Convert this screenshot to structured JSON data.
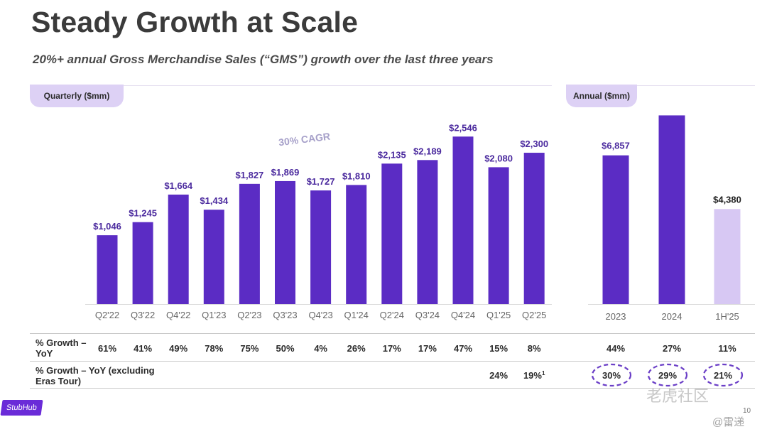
{
  "title": "Steady Growth at Scale",
  "subtitle": "20%+ annual Gross Merchandise Sales (“GMS”) growth over the last three years",
  "cagr_annotation": "30% CAGR",
  "logo": "StubHub",
  "page_number": "10",
  "watermark": "老虎社区",
  "watermark_sub": "@雷递",
  "colors": {
    "bar": "#5b2cc4",
    "bar_light": "#d7c8f3",
    "pill": "#ddd1f5",
    "circle": "#6b3fc7"
  },
  "row_labels": {
    "growth": "% Growth – YoY",
    "growth_ex": "% Growth – YoY (excluding Eras Tour)"
  },
  "chart_data": [
    {
      "type": "bar",
      "title": "Quarterly ($mm)",
      "categories": [
        "Q2'22",
        "Q3'22",
        "Q4'22",
        "Q1'23",
        "Q2'23",
        "Q3'23",
        "Q4'23",
        "Q1'24",
        "Q2'24",
        "Q3'24",
        "Q4'24",
        "Q1'25",
        "Q2'25"
      ],
      "values": [
        1046,
        1245,
        1664,
        1434,
        1827,
        1869,
        1727,
        1810,
        2135,
        2189,
        2546,
        2080,
        2300
      ],
      "value_labels": [
        "$1,046",
        "$1,245",
        "$1,664",
        "$1,434",
        "$1,827",
        "$1,869",
        "$1,727",
        "$1,810",
        "$2,135",
        "$2,189",
        "$2,546",
        "$2,080",
        "$2,300"
      ],
      "growth_yoy": [
        "61%",
        "41%",
        "49%",
        "78%",
        "75%",
        "50%",
        "4%",
        "26%",
        "17%",
        "17%",
        "47%",
        "15%",
        "8%"
      ],
      "growth_ex_eras": [
        "",
        "",
        "",
        "",
        "",
        "",
        "",
        "",
        "",
        "",
        "",
        "24%",
        "19%"
      ],
      "growth_ex_eras_footnote": [
        "",
        "",
        "",
        "",
        "",
        "",
        "",
        "",
        "",
        "",
        "",
        "",
        "1"
      ],
      "ylim": [
        0,
        2700
      ]
    },
    {
      "type": "bar",
      "title": "Annual ($mm)",
      "categories": [
        "2023",
        "2024",
        "1H'25"
      ],
      "values": [
        6857,
        8700,
        4380
      ],
      "value_labels": [
        "$6,857",
        "",
        "$4,380"
      ],
      "growth_yoy": [
        "44%",
        "27%",
        "11%"
      ],
      "growth_ex_eras": [
        "30%",
        "29%",
        "21%"
      ],
      "ylim": [
        0,
        9500
      ]
    }
  ]
}
